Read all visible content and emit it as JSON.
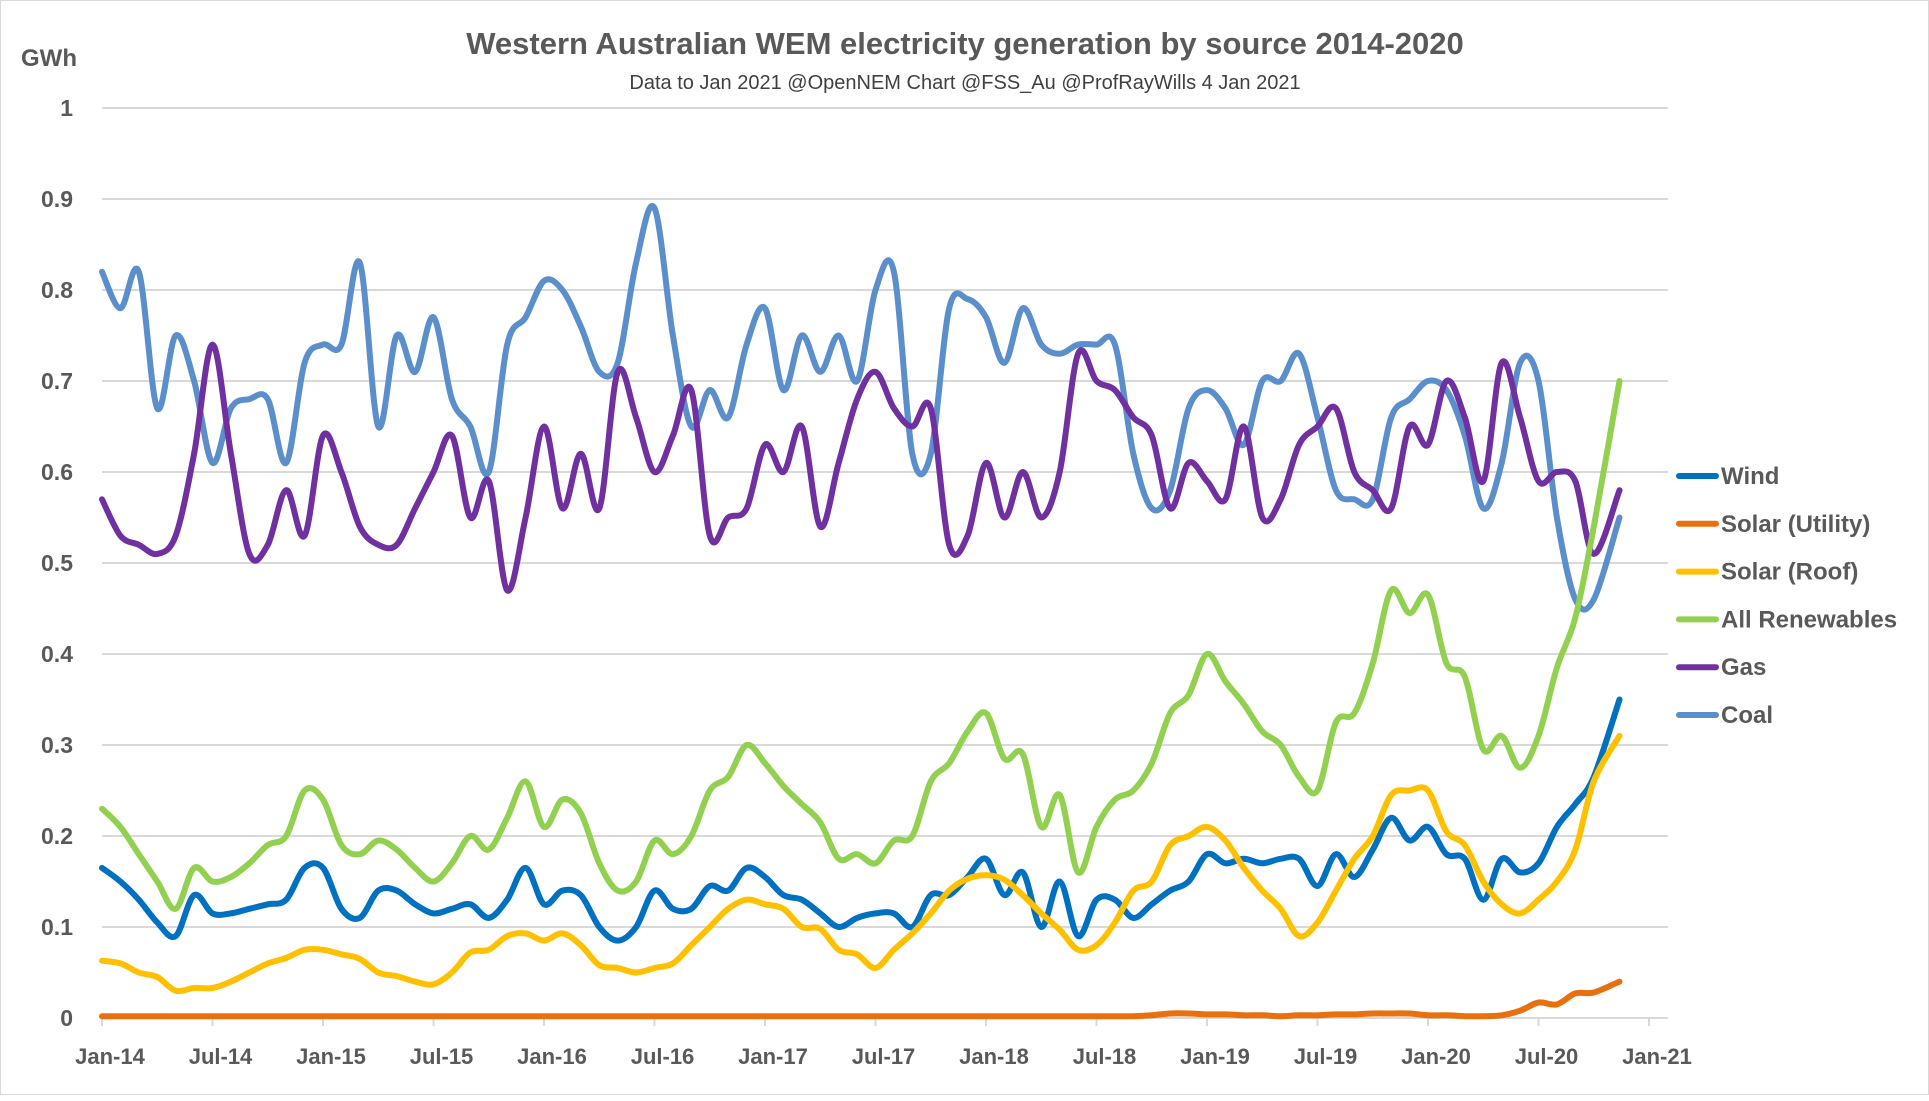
{
  "chart_data": {
    "type": "line",
    "title": "Western Australian WEM electricity generation by source 2014-2020",
    "subtitle": "Data to Jan 2021 @OpenNEM Chart @FSS_Au  @ProfRayWills 4 Jan 2021",
    "ylabel": "GWh",
    "xlabel": "",
    "ylim": [
      0,
      1
    ],
    "yticks": [
      0,
      0.1,
      0.2,
      0.3,
      0.4,
      0.5,
      0.6,
      0.7,
      0.8,
      0.9,
      1
    ],
    "ytick_labels": [
      "0",
      "0.1",
      "0.2",
      "0.3",
      "0.4",
      "0.5",
      "0.6",
      "0.7",
      "0.8",
      "0.9",
      "1"
    ],
    "xtick_labels": [
      "Jan-14",
      "Jul-14",
      "Jan-15",
      "Jul-15",
      "Jan-16",
      "Jul-16",
      "Jan-17",
      "Jul-17",
      "Jan-18",
      "Jul-18",
      "Jan-19",
      "Jul-19",
      "Jan-20",
      "Jul-20",
      "Jan-21"
    ],
    "x_start": "2014-01",
    "x_interval": "monthly",
    "xlim": [
      "2014-01",
      "2021-01"
    ],
    "grid": "horizontal",
    "legend_position": "right",
    "series": [
      {
        "name": "Coal",
        "color": "#5B8FCB",
        "values": [
          0.82,
          0.78,
          0.82,
          0.67,
          0.75,
          0.7,
          0.61,
          0.67,
          0.68,
          0.68,
          0.61,
          0.72,
          0.74,
          0.74,
          0.83,
          0.65,
          0.75,
          0.71,
          0.77,
          0.68,
          0.65,
          0.6,
          0.74,
          0.77,
          0.81,
          0.8,
          0.76,
          0.71,
          0.72,
          0.83,
          0.89,
          0.75,
          0.65,
          0.69,
          0.66,
          0.74,
          0.78,
          0.69,
          0.75,
          0.71,
          0.75,
          0.7,
          0.8,
          0.82,
          0.62,
          0.62,
          0.78,
          0.79,
          0.77,
          0.72,
          0.78,
          0.74,
          0.73,
          0.74,
          0.74,
          0.74,
          0.62,
          0.56,
          0.58,
          0.67,
          0.69,
          0.67,
          0.63,
          0.7,
          0.7,
          0.73,
          0.66,
          0.58,
          0.57,
          0.57,
          0.66,
          0.68,
          0.7,
          0.69,
          0.64,
          0.56,
          0.61,
          0.72,
          0.7,
          0.55,
          0.46,
          0.46,
          0.55
        ]
      },
      {
        "name": "Gas",
        "color": "#7030A0",
        "values": [
          0.57,
          0.53,
          0.52,
          0.51,
          0.53,
          0.62,
          0.74,
          0.62,
          0.51,
          0.52,
          0.58,
          0.53,
          0.64,
          0.6,
          0.54,
          0.52,
          0.52,
          0.56,
          0.6,
          0.64,
          0.55,
          0.59,
          0.47,
          0.55,
          0.65,
          0.56,
          0.62,
          0.56,
          0.71,
          0.66,
          0.6,
          0.64,
          0.69,
          0.53,
          0.55,
          0.56,
          0.63,
          0.6,
          0.65,
          0.54,
          0.61,
          0.68,
          0.71,
          0.67,
          0.65,
          0.67,
          0.52,
          0.53,
          0.61,
          0.55,
          0.6,
          0.55,
          0.6,
          0.73,
          0.7,
          0.69,
          0.66,
          0.64,
          0.56,
          0.61,
          0.59,
          0.57,
          0.65,
          0.55,
          0.57,
          0.63,
          0.65,
          0.67,
          0.6,
          0.58,
          0.56,
          0.65,
          0.63,
          0.7,
          0.66,
          0.59,
          0.72,
          0.66,
          0.59,
          0.6,
          0.59,
          0.51,
          0.58
        ]
      },
      {
        "name": "All Renewables",
        "color": "#92D050",
        "values": [
          0.23,
          0.21,
          0.18,
          0.15,
          0.12,
          0.165,
          0.15,
          0.155,
          0.17,
          0.19,
          0.2,
          0.25,
          0.24,
          0.19,
          0.18,
          0.195,
          0.185,
          0.165,
          0.15,
          0.17,
          0.2,
          0.185,
          0.22,
          0.26,
          0.21,
          0.24,
          0.225,
          0.17,
          0.14,
          0.15,
          0.195,
          0.18,
          0.2,
          0.25,
          0.265,
          0.3,
          0.28,
          0.255,
          0.235,
          0.215,
          0.175,
          0.18,
          0.17,
          0.195,
          0.2,
          0.26,
          0.28,
          0.315,
          0.335,
          0.285,
          0.29,
          0.21,
          0.245,
          0.16,
          0.21,
          0.24,
          0.25,
          0.28,
          0.335,
          0.355,
          0.4,
          0.37,
          0.345,
          0.315,
          0.3,
          0.265,
          0.25,
          0.325,
          0.335,
          0.39,
          0.47,
          0.445,
          0.465,
          0.39,
          0.375,
          0.295,
          0.31,
          0.275,
          0.31,
          0.385,
          0.44,
          0.54,
          0.7
        ]
      },
      {
        "name": "Wind",
        "color": "#0070C0",
        "values": [
          0.165,
          0.15,
          0.13,
          0.105,
          0.09,
          0.135,
          0.115,
          0.115,
          0.12,
          0.125,
          0.13,
          0.165,
          0.165,
          0.12,
          0.11,
          0.14,
          0.14,
          0.125,
          0.115,
          0.12,
          0.125,
          0.11,
          0.13,
          0.165,
          0.125,
          0.14,
          0.135,
          0.1,
          0.085,
          0.1,
          0.14,
          0.12,
          0.12,
          0.145,
          0.14,
          0.165,
          0.155,
          0.135,
          0.13,
          0.115,
          0.1,
          0.11,
          0.115,
          0.115,
          0.1,
          0.135,
          0.135,
          0.155,
          0.175,
          0.135,
          0.16,
          0.1,
          0.15,
          0.09,
          0.13,
          0.13,
          0.11,
          0.125,
          0.14,
          0.15,
          0.18,
          0.17,
          0.175,
          0.17,
          0.175,
          0.175,
          0.145,
          0.18,
          0.155,
          0.185,
          0.22,
          0.195,
          0.21,
          0.18,
          0.175,
          0.13,
          0.175,
          0.16,
          0.17,
          0.21,
          0.235,
          0.265,
          0.35
        ]
      },
      {
        "name": "Solar (Roof)",
        "color": "#FFC000",
        "values": [
          0.063,
          0.06,
          0.05,
          0.045,
          0.03,
          0.033,
          0.033,
          0.04,
          0.05,
          0.06,
          0.066,
          0.075,
          0.075,
          0.07,
          0.065,
          0.05,
          0.046,
          0.04,
          0.037,
          0.05,
          0.072,
          0.075,
          0.09,
          0.093,
          0.085,
          0.093,
          0.08,
          0.058,
          0.055,
          0.05,
          0.055,
          0.06,
          0.08,
          0.1,
          0.12,
          0.13,
          0.125,
          0.12,
          0.1,
          0.098,
          0.075,
          0.07,
          0.055,
          0.075,
          0.093,
          0.115,
          0.14,
          0.153,
          0.157,
          0.152,
          0.135,
          0.115,
          0.097,
          0.075,
          0.08,
          0.105,
          0.14,
          0.15,
          0.19,
          0.2,
          0.21,
          0.195,
          0.165,
          0.14,
          0.12,
          0.09,
          0.105,
          0.14,
          0.175,
          0.2,
          0.245,
          0.25,
          0.25,
          0.205,
          0.19,
          0.15,
          0.125,
          0.115,
          0.13,
          0.15,
          0.185,
          0.26,
          0.31
        ]
      },
      {
        "name": "Solar (Utility)",
        "color": "#E8700F",
        "values": [
          0.002,
          0.002,
          0.002,
          0.002,
          0.002,
          0.002,
          0.002,
          0.002,
          0.002,
          0.002,
          0.002,
          0.002,
          0.002,
          0.002,
          0.002,
          0.002,
          0.002,
          0.002,
          0.002,
          0.002,
          0.002,
          0.002,
          0.002,
          0.002,
          0.002,
          0.002,
          0.002,
          0.002,
          0.002,
          0.002,
          0.002,
          0.002,
          0.002,
          0.002,
          0.002,
          0.002,
          0.002,
          0.002,
          0.002,
          0.002,
          0.002,
          0.002,
          0.002,
          0.002,
          0.002,
          0.002,
          0.002,
          0.002,
          0.002,
          0.002,
          0.002,
          0.002,
          0.002,
          0.002,
          0.002,
          0.002,
          0.002,
          0.003,
          0.005,
          0.005,
          0.004,
          0.004,
          0.003,
          0.003,
          0.002,
          0.003,
          0.003,
          0.004,
          0.004,
          0.005,
          0.005,
          0.005,
          0.003,
          0.003,
          0.002,
          0.002,
          0.003,
          0.008,
          0.017,
          0.015,
          0.027,
          0.028,
          0.04
        ]
      }
    ],
    "legend_order": [
      "Wind",
      "Solar (Utility)",
      "Solar (Roof)",
      "All Renewables",
      "Gas",
      "Coal"
    ]
  }
}
